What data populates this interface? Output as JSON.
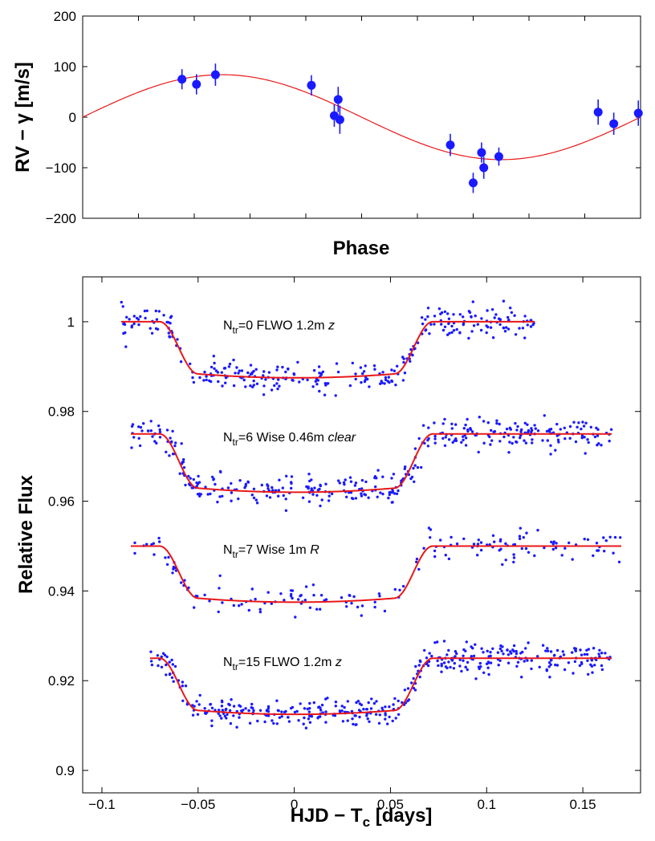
{
  "chart_data": [
    {
      "type": "scatter",
      "xlabel": "Phase",
      "ylabel": "RV − γ [m/s]",
      "xlim": [
        0,
        1
      ],
      "ylim": [
        -200,
        200
      ],
      "yticks": [
        {
          "value": -200,
          "label": "−200"
        },
        {
          "value": -100,
          "label": "−100"
        },
        {
          "value": 0,
          "label": "0"
        },
        {
          "value": 100,
          "label": "100"
        },
        {
          "value": 200,
          "label": "200"
        }
      ],
      "model": {
        "amplitude": 84,
        "phase_of_zero_crossing": 0.0,
        "shape": "-sin"
      },
      "colors": {
        "points": "#1a1aff",
        "model": "#e81818"
      },
      "points": [
        {
          "x": 0.178,
          "y": 75,
          "err": 20
        },
        {
          "x": 0.204,
          "y": 65,
          "err": 20
        },
        {
          "x": 0.238,
          "y": 84,
          "err": 22
        },
        {
          "x": 0.41,
          "y": 63,
          "err": 20
        },
        {
          "x": 0.451,
          "y": 3,
          "err": 22
        },
        {
          "x": 0.458,
          "y": 35,
          "err": 25
        },
        {
          "x": 0.461,
          "y": -5,
          "err": 28
        },
        {
          "x": 0.659,
          "y": -55,
          "err": 22
        },
        {
          "x": 0.7,
          "y": -130,
          "err": 20
        },
        {
          "x": 0.715,
          "y": -70,
          "err": 20
        },
        {
          "x": 0.719,
          "y": -100,
          "err": 22
        },
        {
          "x": 0.746,
          "y": -78,
          "err": 18
        },
        {
          "x": 0.924,
          "y": 10,
          "err": 25
        },
        {
          "x": 0.952,
          "y": -13,
          "err": 22
        },
        {
          "x": 0.996,
          "y": 8,
          "err": 25
        }
      ]
    },
    {
      "type": "scatter",
      "xlabel": "HJD − T",
      "xlabel_sub": "c",
      "xlabel_suffix": " [days]",
      "ylabel": "Relative Flux",
      "xlim": [
        -0.11,
        0.18
      ],
      "ylim": [
        0.895,
        1.01
      ],
      "xticks": [
        {
          "value": -0.1,
          "label": "−0.1"
        },
        {
          "value": -0.05,
          "label": "−0.05"
        },
        {
          "value": 0,
          "label": "0"
        },
        {
          "value": 0.05,
          "label": "0.05"
        },
        {
          "value": 0.1,
          "label": "0.1"
        },
        {
          "value": 0.15,
          "label": "0.15"
        }
      ],
      "yticks": [
        {
          "value": 0.9,
          "label": "0.9"
        },
        {
          "value": 0.92,
          "label": "0.92"
        },
        {
          "value": 0.94,
          "label": "0.94"
        },
        {
          "value": 0.96,
          "label": "0.96"
        },
        {
          "value": 0.98,
          "label": "0.98"
        },
        {
          "value": 1.0,
          "label": "1"
        }
      ],
      "colors": {
        "points": "#1a1aff",
        "model": "#e81818"
      },
      "series": [
        {
          "label_main": "N",
          "label_sub": "tr",
          "label_text": "=0 FLWO 1.2m ",
          "label_band": "z",
          "baseline": 1.0,
          "depth": 0.0125,
          "x_start": -0.09,
          "x_end": 0.125,
          "scatter": 0.0016,
          "n_points": 300
        },
        {
          "label_main": "N",
          "label_sub": "tr",
          "label_text": "=6 Wise 0.46m ",
          "label_band": "clear",
          "baseline": 0.975,
          "depth": 0.013,
          "x_start": -0.085,
          "x_end": 0.165,
          "scatter": 0.0017,
          "n_points": 380
        },
        {
          "label_main": "N",
          "label_sub": "tr",
          "label_text": "=7 Wise 1m ",
          "label_band": "R",
          "baseline": 0.95,
          "depth": 0.0125,
          "x_start": -0.085,
          "x_end": 0.17,
          "scatter": 0.0017,
          "n_points": 170
        },
        {
          "label_main": "N",
          "label_sub": "tr",
          "label_text": "=15 FLWO 1.2m ",
          "label_band": "z",
          "baseline": 0.925,
          "depth": 0.0125,
          "x_start": -0.075,
          "x_end": 0.165,
          "scatter": 0.0016,
          "n_points": 420
        }
      ]
    }
  ]
}
